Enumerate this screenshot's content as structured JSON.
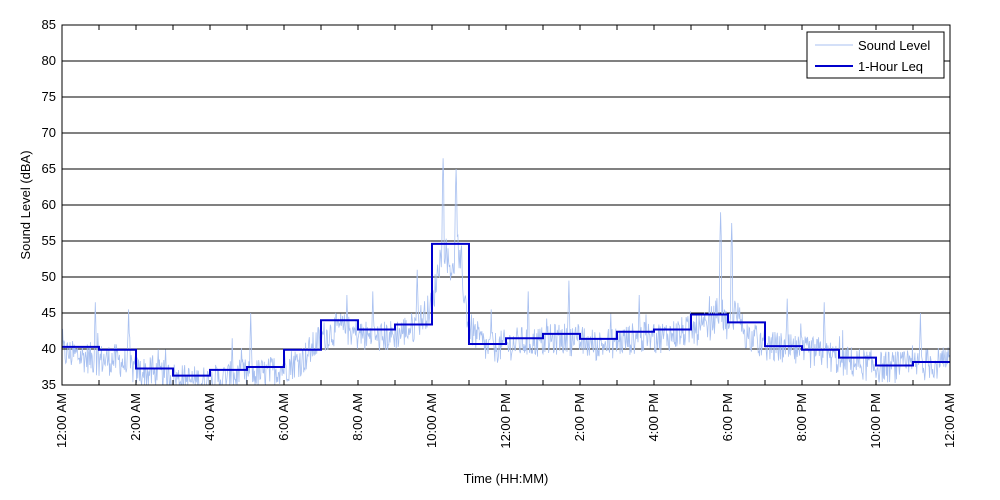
{
  "chart_data": {
    "type": "line",
    "xlabel": "Time (HH:MM)",
    "ylabel": "Sound Level (dBA)",
    "ylim": [
      35,
      85
    ],
    "yticks": [
      35,
      40,
      45,
      50,
      55,
      60,
      65,
      70,
      75,
      80,
      85
    ],
    "xlim_hours": [
      0,
      24
    ],
    "xtick_labels": [
      "12:00 AM",
      "2:00 AM",
      "4:00 AM",
      "6:00 AM",
      "8:00 AM",
      "10:00 AM",
      "12:00 PM",
      "2:00 PM",
      "4:00 PM",
      "6:00 PM",
      "8:00 PM",
      "10:00 PM",
      "12:00 AM"
    ],
    "grid": "horizontal",
    "legend": "top-right",
    "series": [
      {
        "name": "Sound Level",
        "color": "#a8c0f0",
        "style": "thin-line",
        "profile_hours": [
          0,
          0.5,
          1,
          1.5,
          2,
          2.5,
          3,
          3.5,
          4,
          4.5,
          5,
          5.5,
          6,
          6.5,
          7,
          7.5,
          8,
          8.5,
          9,
          9.5,
          10,
          10.3,
          10.5,
          10.7,
          11,
          11.5,
          12,
          12.5,
          13,
          13.5,
          14,
          14.5,
          15,
          15.5,
          16,
          16.5,
          17,
          17.5,
          17.8,
          18,
          18.2,
          18.5,
          19,
          19.5,
          20,
          20.5,
          21,
          21.5,
          22,
          22.5,
          23,
          23.5,
          24
        ],
        "profile_values": [
          39.5,
          39,
          38.5,
          38.5,
          37,
          36.5,
          36,
          35.5,
          35.5,
          36,
          36.5,
          36.5,
          37.5,
          38.5,
          41.5,
          43,
          42,
          41.5,
          42,
          43,
          46,
          55,
          51,
          54,
          43,
          40,
          40.5,
          41,
          41,
          41.5,
          41,
          40.5,
          41,
          41.5,
          41.5,
          42,
          42.5,
          43,
          46,
          42,
          45,
          42,
          40.5,
          40,
          39.5,
          39.5,
          38.5,
          38,
          37.5,
          37.5,
          37.5,
          38,
          38
        ],
        "spikes": [
          {
            "hour": 0.9,
            "value": 46.5
          },
          {
            "hour": 1.8,
            "value": 45.5
          },
          {
            "hour": 4.6,
            "value": 41.5
          },
          {
            "hour": 5.1,
            "value": 45
          },
          {
            "hour": 7.7,
            "value": 47.5
          },
          {
            "hour": 8.4,
            "value": 48
          },
          {
            "hour": 9.6,
            "value": 51
          },
          {
            "hour": 10.3,
            "value": 66.5
          },
          {
            "hour": 10.65,
            "value": 65
          },
          {
            "hour": 11.6,
            "value": 45.5
          },
          {
            "hour": 12.6,
            "value": 48
          },
          {
            "hour": 13.7,
            "value": 49.5
          },
          {
            "hour": 15.6,
            "value": 47.5
          },
          {
            "hour": 17.8,
            "value": 59
          },
          {
            "hour": 18.1,
            "value": 57.5
          },
          {
            "hour": 19.6,
            "value": 47
          },
          {
            "hour": 20.6,
            "value": 46.5
          },
          {
            "hour": 23.2,
            "value": 45
          }
        ]
      },
      {
        "name": "1-Hour Leq",
        "color": "#0000cc",
        "style": "step",
        "hours": [
          0,
          1,
          2,
          3,
          4,
          5,
          6,
          7,
          8,
          9,
          10,
          11,
          12,
          13,
          14,
          15,
          16,
          17,
          18,
          19,
          20,
          21,
          22,
          23
        ],
        "values": [
          40.3,
          39.9,
          37.3,
          36.3,
          37.1,
          37.5,
          39.9,
          44.0,
          42.7,
          43.4,
          54.6,
          40.7,
          41.5,
          42.1,
          41.4,
          42.4,
          42.7,
          44.8,
          43.7,
          40.4,
          39.9,
          38.8,
          37.7,
          38.2
        ]
      }
    ]
  }
}
